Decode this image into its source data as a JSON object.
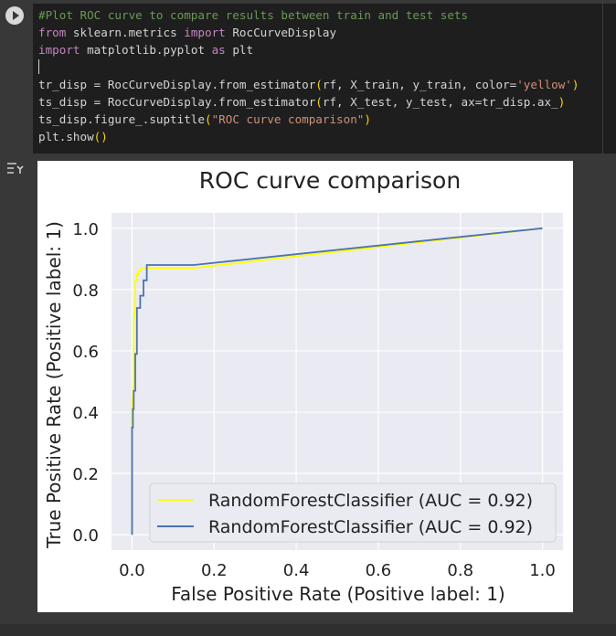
{
  "code_cell": {
    "lines": [
      [
        {
          "t": "#Plot ROC curve to compare results between train and test sets",
          "c": "comment"
        }
      ],
      [
        {
          "t": "from",
          "c": "kw"
        },
        {
          "t": " sklearn.metrics ",
          "c": "ident"
        },
        {
          "t": "import",
          "c": "kw"
        },
        {
          "t": " RocCurveDisplay",
          "c": "ident"
        }
      ],
      [
        {
          "t": "import",
          "c": "kw"
        },
        {
          "t": " matplotlib.pyplot ",
          "c": "ident"
        },
        {
          "t": "as",
          "c": "kw"
        },
        {
          "t": " plt",
          "c": "ident"
        }
      ],
      [
        {
          "t": "",
          "c": "cursor"
        }
      ],
      [
        {
          "t": "tr_disp = RocCurveDisplay.from_estimator",
          "c": "ident"
        },
        {
          "t": "(",
          "c": "paren"
        },
        {
          "t": "rf, X_train, y_train, color=",
          "c": "ident"
        },
        {
          "t": "'yellow'",
          "c": "str"
        },
        {
          "t": ")",
          "c": "paren"
        }
      ],
      [
        {
          "t": "ts_disp = RocCurveDisplay.from_estimator",
          "c": "ident"
        },
        {
          "t": "(",
          "c": "paren"
        },
        {
          "t": "rf, X_test, y_test, ax=tr_disp.ax_",
          "c": "ident"
        },
        {
          "t": ")",
          "c": "paren"
        }
      ],
      [
        {
          "t": "ts_disp.figure_.suptitle",
          "c": "ident"
        },
        {
          "t": "(",
          "c": "paren"
        },
        {
          "t": "\"ROC curve comparison\"",
          "c": "str"
        },
        {
          "t": ")",
          "c": "paren"
        }
      ],
      [
        {
          "t": "plt.show",
          "c": "ident"
        },
        {
          "t": "()",
          "c": "paren"
        }
      ]
    ]
  },
  "chart_data": {
    "type": "line",
    "title": "ROC curve comparison",
    "xlabel": "False Positive Rate (Positive label: 1)",
    "ylabel": "True Positive Rate (Positive label: 1)",
    "xlim": [
      -0.05,
      1.05
    ],
    "ylim": [
      -0.05,
      1.05
    ],
    "xticks": [
      0.0,
      0.2,
      0.4,
      0.6,
      0.8,
      1.0
    ],
    "yticks": [
      0.0,
      0.2,
      0.4,
      0.6,
      0.8,
      1.0
    ],
    "tick_labels_x": [
      "0.0",
      "0.2",
      "0.4",
      "0.6",
      "0.8",
      "1.0"
    ],
    "tick_labels_y": [
      "0.0",
      "0.2",
      "0.4",
      "0.6",
      "0.8",
      "1.0"
    ],
    "grid": true,
    "legend_position": "lower-right",
    "series": [
      {
        "name": "RandomForestClassifier (AUC = 0.92)",
        "color": "#ffff00",
        "x": [
          0.0,
          0.0,
          0.004,
          0.004,
          0.008,
          0.008,
          0.012,
          0.012,
          0.016,
          0.016,
          0.022,
          0.022,
          0.04,
          0.04,
          0.15,
          1.0
        ],
        "y": [
          0.0,
          0.42,
          0.5,
          0.7,
          0.74,
          0.83,
          0.83,
          0.85,
          0.85,
          0.86,
          0.86,
          0.87,
          0.87,
          0.87,
          0.87,
          1.0
        ]
      },
      {
        "name": "RandomForestClassifier (AUC = 0.92)",
        "color": "#4c72b0",
        "x": [
          0.0,
          0.0,
          0.002,
          0.002,
          0.004,
          0.004,
          0.008,
          0.008,
          0.012,
          0.012,
          0.02,
          0.02,
          0.028,
          0.028,
          0.036,
          0.036,
          0.15,
          1.0
        ],
        "y": [
          0.0,
          0.35,
          0.35,
          0.41,
          0.41,
          0.47,
          0.47,
          0.59,
          0.59,
          0.74,
          0.74,
          0.78,
          0.78,
          0.83,
          0.83,
          0.88,
          0.88,
          1.0
        ]
      }
    ]
  }
}
